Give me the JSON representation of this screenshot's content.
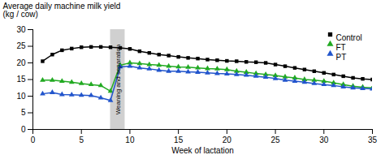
{
  "chart_data": {
    "type": "line",
    "xlabel": "Week of lactation",
    "ylabel": "Average daily machine milk yield\n(kg / cow)",
    "xlim": [
      0,
      35
    ],
    "ylim": [
      0,
      30
    ],
    "xticks": [
      0,
      5,
      10,
      15,
      20,
      25,
      30,
      35
    ],
    "yticks": [
      0,
      5,
      10,
      15,
      20,
      25,
      30
    ],
    "grid": false,
    "legend": "upper right",
    "shading": {
      "x": [
        8,
        9.5
      ],
      "label": "Weaning and separation",
      "color": "#d0d0d0"
    },
    "x": [
      1,
      2,
      3,
      4,
      5,
      6,
      7,
      8,
      9,
      10,
      11,
      12,
      13,
      14,
      15,
      16,
      17,
      18,
      19,
      20,
      21,
      22,
      23,
      24,
      25,
      26,
      27,
      28,
      29,
      30,
      31,
      32,
      33,
      34,
      35
    ],
    "series": [
      {
        "name": "Control",
        "color": "#000000",
        "marker": "square",
        "values": [
          20.5,
          22.5,
          23.8,
          24.3,
          24.7,
          24.8,
          24.8,
          24.7,
          24.5,
          24.2,
          23.5,
          23.0,
          22.5,
          22.2,
          21.8,
          21.5,
          21.3,
          21.0,
          20.8,
          20.6,
          20.5,
          20.3,
          20.2,
          20.0,
          19.5,
          19.0,
          18.5,
          18.0,
          17.5,
          17.0,
          16.5,
          16.0,
          15.5,
          15.2,
          15.0
        ]
      },
      {
        "name": "FT",
        "color": "#22aa22",
        "marker": "triangle",
        "values": [
          14.8,
          14.8,
          14.5,
          14.2,
          13.8,
          13.5,
          13.2,
          11.5,
          19.3,
          20.0,
          19.8,
          19.5,
          19.3,
          19.0,
          18.8,
          18.7,
          18.5,
          18.3,
          18.2,
          18.0,
          17.5,
          17.2,
          16.8,
          16.5,
          16.2,
          15.8,
          15.5,
          15.0,
          14.8,
          14.5,
          14.0,
          13.5,
          13.0,
          12.7,
          12.5
        ]
      },
      {
        "name": "PT",
        "color": "#2255cc",
        "marker": "triangle",
        "values": [
          10.7,
          11.1,
          10.5,
          10.4,
          10.3,
          10.2,
          9.5,
          8.7,
          18.8,
          19.0,
          18.5,
          18.2,
          17.8,
          17.5,
          17.5,
          17.3,
          17.2,
          17.0,
          16.8,
          16.7,
          16.5,
          16.3,
          16.0,
          15.7,
          15.3,
          14.8,
          14.5,
          14.2,
          13.8,
          13.5,
          13.2,
          12.8,
          12.5,
          12.3,
          12.2
        ]
      }
    ]
  }
}
